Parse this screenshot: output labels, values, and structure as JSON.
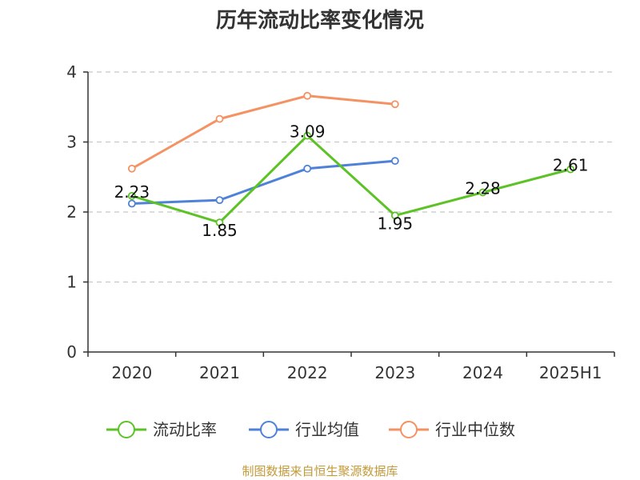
{
  "chart_data": {
    "type": "line",
    "title": "历年流动比率变化情况",
    "categories": [
      "2020",
      "2021",
      "2022",
      "2023",
      "2024",
      "2025H1"
    ],
    "ylim": [
      0,
      4
    ],
    "yticks": [
      "0",
      "1",
      "2",
      "3",
      "4"
    ],
    "grid": true,
    "legend_position": "bottom",
    "series": [
      {
        "name": "流动比率",
        "color": "#5cc226",
        "values": [
          2.23,
          1.85,
          3.09,
          1.95,
          2.28,
          2.61
        ],
        "labels": [
          "2.23",
          "1.85",
          "3.09",
          "1.95",
          "2.28",
          "2.61"
        ]
      },
      {
        "name": "行业均值",
        "color": "#4f81d8",
        "values": [
          2.12,
          2.17,
          2.62,
          2.73,
          null,
          null
        ]
      },
      {
        "name": "行业中位数",
        "color": "#f59263",
        "values": [
          2.62,
          3.33,
          3.66,
          3.54,
          null,
          null
        ]
      }
    ]
  },
  "source": {
    "text": "制图数据来自恒生聚源数据库",
    "color": "#c39a3a"
  }
}
